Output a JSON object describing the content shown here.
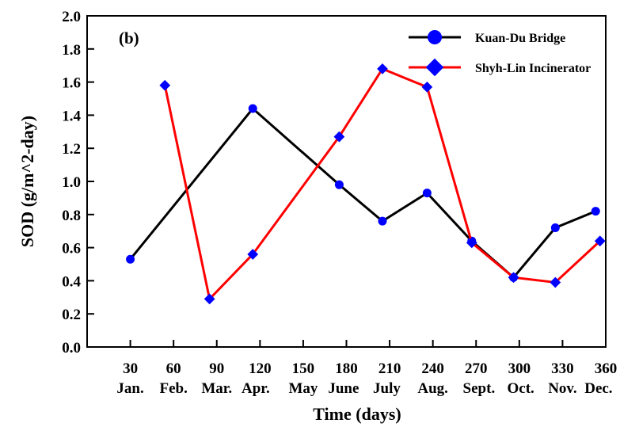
{
  "chart_data": {
    "type": "line",
    "panel_label": "(b)",
    "xlabel": "Time (days)",
    "ylabel": "SOD (g/m^2-day)",
    "xlim": [
      0,
      360
    ],
    "ylim": [
      0,
      2.0
    ],
    "x_ticks": [
      30,
      60,
      90,
      120,
      150,
      180,
      210,
      240,
      270,
      300,
      330,
      360
    ],
    "y_ticks": [
      "0.0",
      "0.2",
      "0.4",
      "0.6",
      "0.8",
      "1.0",
      "1.2",
      "1.4",
      "1.6",
      "1.8",
      "2.0"
    ],
    "months": [
      {
        "label": "Jan.",
        "x": 30
      },
      {
        "label": "Feb.",
        "x": 60
      },
      {
        "label": "Mar.",
        "x": 90
      },
      {
        "label": "Apr.",
        "x": 117
      },
      {
        "label": "May",
        "x": 150
      },
      {
        "label": "June",
        "x": 178
      },
      {
        "label": "July",
        "x": 208
      },
      {
        "label": "Aug.",
        "x": 240
      },
      {
        "label": "Sept.",
        "x": 272
      },
      {
        "label": "Oct.",
        "x": 301
      },
      {
        "label": "Nov.",
        "x": 330
      },
      {
        "label": "Dec.",
        "x": 355
      }
    ],
    "series": [
      {
        "name": "Kuan-Du Bridge",
        "color": "#000000",
        "marker": "circle",
        "marker_color": "#0000ff",
        "points": [
          {
            "x": 30,
            "y": 0.53
          },
          {
            "x": 115,
            "y": 1.44
          },
          {
            "x": 175,
            "y": 0.98
          },
          {
            "x": 205,
            "y": 0.76
          },
          {
            "x": 236,
            "y": 0.93
          },
          {
            "x": 267,
            "y": 0.64
          },
          {
            "x": 296,
            "y": 0.42
          },
          {
            "x": 325,
            "y": 0.72
          },
          {
            "x": 353,
            "y": 0.82
          }
        ]
      },
      {
        "name": "Shyh-Lin Incinerator",
        "color": "#ff0000",
        "marker": "diamond",
        "marker_color": "#0000ff",
        "points": [
          {
            "x": 54,
            "y": 1.58
          },
          {
            "x": 85,
            "y": 0.29
          },
          {
            "x": 115,
            "y": 0.56
          },
          {
            "x": 175,
            "y": 1.27
          },
          {
            "x": 205,
            "y": 1.68
          },
          {
            "x": 236,
            "y": 1.57
          },
          {
            "x": 267,
            "y": 0.63
          },
          {
            "x": 296,
            "y": 0.42
          },
          {
            "x": 325,
            "y": 0.39
          },
          {
            "x": 356,
            "y": 0.64
          }
        ]
      }
    ],
    "legend_position": "top-right",
    "grid": false
  }
}
